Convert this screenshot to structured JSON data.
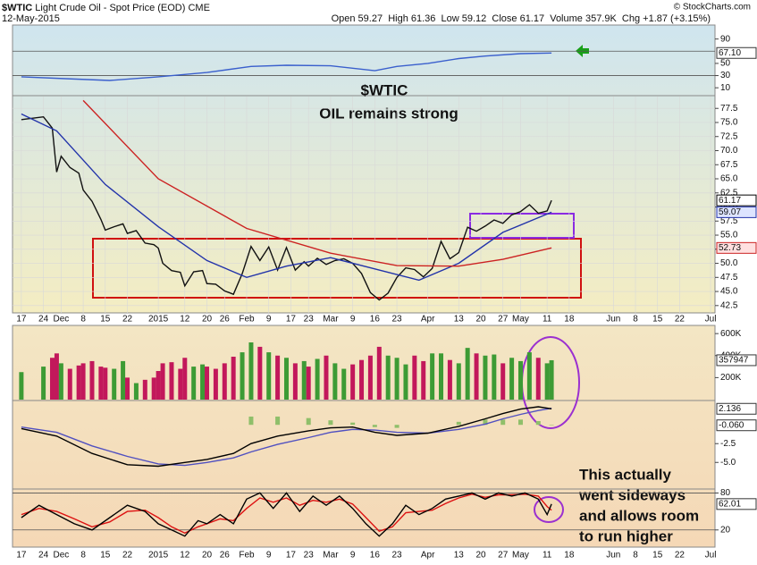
{
  "header": {
    "symbol": "$WTIC",
    "name": "Light Crude Oil - Spot Price (EOD)",
    "exchange": "CME",
    "date": "12-May-2015",
    "stats": "Open 59.27  High 61.36  Low 59.12  Close 61.17  Volume 357.9K  Chg +1.87 (+3.15%)",
    "copyright": "© StockCharts.com"
  },
  "annotations": [
    "$WTIC",
    "OIL remains strong",
    "This actually",
    "went sideways",
    "and allows room",
    "to run higher"
  ],
  "chart_data": [
    {
      "type": "line",
      "ylim": [
        0,
        110
      ],
      "yticks": [
        90,
        50,
        30,
        10
      ],
      "ref_lines": [
        70,
        30
      ],
      "tags": [
        {
          "value": 67.1,
          "label": "67.10"
        }
      ],
      "series": [
        {
          "color": "#3a5fcd",
          "x": [
            0,
            10,
            20,
            31,
            42,
            52,
            60,
            70,
            80,
            85,
            92,
            99,
            105,
            113,
            120
          ],
          "values": [
            28,
            25,
            22,
            28,
            35,
            45,
            47,
            46,
            38,
            45,
            50,
            58,
            62,
            66,
            67.1
          ]
        }
      ]
    },
    {
      "type": "line",
      "xlim": [
        -2,
        157
      ],
      "ylim": [
        41.2,
        79.6
      ],
      "xticks": [
        {
          "value": 0,
          "label": "17"
        },
        {
          "value": 5,
          "label": "24"
        },
        {
          "value": 9,
          "label": "Dec"
        },
        {
          "value": 14,
          "label": "8"
        },
        {
          "value": 19,
          "label": "15"
        },
        {
          "value": 24,
          "label": "22"
        },
        {
          "value": 31,
          "label": "2015"
        },
        {
          "value": 37,
          "label": "12"
        },
        {
          "value": 42,
          "label": "20"
        },
        {
          "value": 46,
          "label": "26"
        },
        {
          "value": 51,
          "label": "Feb"
        },
        {
          "value": 56,
          "label": "9"
        },
        {
          "value": 61,
          "label": "17"
        },
        {
          "value": 65,
          "label": "23"
        },
        {
          "value": 70,
          "label": "Mar"
        },
        {
          "value": 75,
          "label": "9"
        },
        {
          "value": 80,
          "label": "16"
        },
        {
          "value": 85,
          "label": "23"
        },
        {
          "value": 92,
          "label": "Apr"
        },
        {
          "value": 99,
          "label": "13"
        },
        {
          "value": 104,
          "label": "20"
        },
        {
          "value": 109,
          "label": "27"
        },
        {
          "value": 113,
          "label": "May"
        },
        {
          "value": 119,
          "label": "11"
        },
        {
          "value": 124,
          "label": "18"
        },
        {
          "value": 134,
          "label": "Jun"
        },
        {
          "value": 139,
          "label": "8"
        },
        {
          "value": 144,
          "label": "15"
        },
        {
          "value": 149,
          "label": "22"
        },
        {
          "value": 156,
          "label": "Jul"
        }
      ],
      "yticks": [
        77.5,
        {
          "value": 75,
          "label": "75.0"
        },
        72.5,
        {
          "value": 70,
          "label": "70.0"
        },
        67.5,
        {
          "value": 65,
          "label": "65.0"
        },
        62.5,
        {
          "value": 60,
          "label": "60.0"
        },
        57.5,
        {
          "value": 55,
          "label": "55.0"
        },
        52.5,
        {
          "value": 50,
          "label": "50.0"
        },
        47.5,
        {
          "value": 45,
          "label": "45.0"
        },
        42.5
      ],
      "grid": true,
      "tags": [
        61.17,
        59.07,
        52.73
      ],
      "series": [
        {
          "color": "#111111",
          "x": [
            0,
            5,
            7,
            8,
            9,
            11,
            13,
            14,
            16,
            18,
            19,
            21,
            23,
            24,
            26,
            28,
            30,
            31,
            32,
            34,
            36,
            37,
            39,
            41,
            42,
            44,
            46,
            48,
            50,
            52,
            54,
            56,
            58,
            60,
            62,
            64,
            65,
            67,
            69,
            71,
            73,
            75,
            77,
            79,
            81,
            83,
            85,
            87,
            89,
            91,
            93,
            95,
            97,
            99,
            101,
            103,
            105,
            107,
            109,
            111,
            113,
            115,
            117,
            119,
            120
          ],
          "values": [
            75.5,
            76,
            74,
            66.2,
            69,
            67,
            66,
            63,
            61,
            57.8,
            55.9,
            56.5,
            57,
            55.3,
            55.8,
            53.6,
            53.3,
            52.7,
            50,
            48.7,
            48.4,
            46,
            48.5,
            48.7,
            46.4,
            46.3,
            45.1,
            44.5,
            48.2,
            53,
            50.5,
            52.9,
            48.8,
            52.8,
            48.8,
            50.3,
            49.5,
            50.9,
            49.8,
            50.5,
            50.8,
            50,
            48.2,
            44.8,
            43.5,
            44.7,
            47.5,
            49.2,
            48.9,
            47.6,
            49.1,
            53.9,
            50.8,
            51.9,
            56.4,
            55.7,
            56.6,
            57.7,
            57.1,
            58.6,
            59.2,
            60.4,
            58.9,
            59.3,
            61.17
          ]
        },
        {
          "color": "#2233aa",
          "x": [
            0,
            8,
            19,
            31,
            42,
            51,
            60,
            70,
            80,
            90,
            99,
            109,
            120
          ],
          "values": [
            76.5,
            73.5,
            64,
            56.5,
            50.5,
            47.5,
            49.5,
            51,
            49,
            47,
            50,
            55.5,
            59.07
          ]
        },
        {
          "color": "#cc2222",
          "x": [
            14,
            31,
            51,
            70,
            85,
            99,
            109,
            120
          ],
          "values": [
            78.9,
            65,
            56.2,
            51.8,
            49.6,
            49.5,
            50.7,
            52.73
          ]
        }
      ]
    },
    {
      "type": "bar",
      "ylim": [
        0,
        650000
      ],
      "yticks": [
        {
          "value": 600000,
          "label": "600K"
        },
        {
          "value": 400000,
          "label": "400K"
        },
        {
          "value": 200000,
          "label": "200K"
        }
      ],
      "tags": [
        357947
      ],
      "up_color": "#3d9b35",
      "down_color": "#c2185b",
      "series": [
        {
          "x": [
            0,
            5,
            7,
            8,
            9,
            11,
            13,
            14,
            16,
            18,
            19,
            21,
            23,
            24,
            26,
            28,
            30,
            31,
            32,
            34,
            36,
            37,
            39,
            41,
            42,
            44,
            46,
            48,
            50,
            52,
            54,
            56,
            58,
            60,
            62,
            64,
            65,
            67,
            69,
            71,
            73,
            75,
            77,
            79,
            81,
            83,
            85,
            87,
            89,
            91,
            93,
            95,
            97,
            99,
            101,
            103,
            105,
            107,
            109,
            111,
            113,
            115,
            117,
            119,
            120
          ],
          "values": [
            250000,
            300000,
            380000,
            420000,
            330000,
            280000,
            310000,
            330000,
            350000,
            300000,
            290000,
            280000,
            350000,
            200000,
            150000,
            180000,
            200000,
            260000,
            330000,
            340000,
            280000,
            380000,
            300000,
            320000,
            300000,
            280000,
            330000,
            390000,
            430000,
            520000,
            480000,
            430000,
            400000,
            380000,
            330000,
            350000,
            300000,
            370000,
            400000,
            330000,
            280000,
            320000,
            360000,
            400000,
            480000,
            400000,
            380000,
            320000,
            400000,
            350000,
            420000,
            420000,
            360000,
            330000,
            470000,
            420000,
            400000,
            410000,
            330000,
            380000,
            350000,
            430000,
            380000,
            330000,
            357947
          ]
        }
      ]
    },
    {
      "type": "line",
      "ylim": [
        -8.3,
        3
      ],
      "yticks": [
        -2.5,
        {
          "value": -5,
          "label": "-5.0"
        }
      ],
      "tags": [
        2.136,
        {
          "value": -0.06,
          "label": "-0.060"
        }
      ],
      "series": [
        {
          "color": "#8fbf6a",
          "style": "histogram",
          "x": [
            52,
            58,
            65,
            70,
            75,
            80,
            85,
            92,
            99,
            105,
            109,
            113,
            117,
            120
          ],
          "values": [
            1.1,
            1.1,
            0.9,
            0.6,
            0.3,
            -0.3,
            -0.4,
            0,
            0.4,
            0.7,
            0.7,
            0.7,
            0.5,
            -0.06
          ]
        },
        {
          "color": "#5050c0",
          "x": [
            0,
            8,
            16,
            24,
            31,
            37,
            42,
            48,
            52,
            58,
            65,
            70,
            75,
            80,
            85,
            92,
            99,
            105,
            109,
            113,
            117,
            120
          ],
          "values": [
            -0.3,
            -1,
            -2.8,
            -4.2,
            -5.2,
            -5.4,
            -5,
            -4.4,
            -3.6,
            -2.6,
            -1.7,
            -1,
            -0.6,
            -0.7,
            -1,
            -1.1,
            -0.6,
            0.1,
            0.8,
            1.4,
            1.9,
            2.2
          ]
        },
        {
          "color": "#000000",
          "x": [
            0,
            8,
            16,
            24,
            31,
            37,
            42,
            48,
            52,
            58,
            65,
            70,
            75,
            80,
            85,
            92,
            99,
            105,
            109,
            113,
            117,
            120
          ],
          "values": [
            -0.5,
            -1.5,
            -3.8,
            -5.3,
            -5.5,
            -5,
            -4.6,
            -3.8,
            -2.5,
            -1.5,
            -0.8,
            -0.4,
            -0.3,
            -1,
            -1.4,
            -1.1,
            -0.2,
            0.8,
            1.5,
            2.1,
            2.4,
            2.136
          ]
        }
      ]
    },
    {
      "type": "line",
      "ylim": [
        -5,
        85
      ],
      "yticks": [
        80,
        20
      ],
      "ref_lines": [
        80,
        20
      ],
      "tags": [
        62.01
      ],
      "series": [
        {
          "color": "#dd1111",
          "x": [
            0,
            4,
            8,
            12,
            16,
            20,
            24,
            28,
            31,
            34,
            37,
            40,
            42,
            45,
            48,
            51,
            54,
            57,
            60,
            63,
            66,
            69,
            72,
            75,
            78,
            81,
            84,
            87,
            90,
            93,
            96,
            99,
            102,
            105,
            108,
            111,
            114,
            117,
            119,
            120
          ],
          "values": [
            45,
            55,
            50,
            38,
            25,
            33,
            50,
            52,
            40,
            25,
            15,
            25,
            30,
            38,
            35,
            55,
            72,
            65,
            72,
            60,
            68,
            65,
            70,
            62,
            40,
            18,
            25,
            48,
            50,
            52,
            63,
            72,
            78,
            73,
            77,
            77,
            78,
            75,
            58,
            52
          ]
        },
        {
          "color": "#000000",
          "x": [
            0,
            4,
            8,
            12,
            16,
            20,
            24,
            28,
            31,
            34,
            37,
            40,
            42,
            45,
            48,
            51,
            54,
            57,
            60,
            63,
            66,
            69,
            72,
            75,
            78,
            81,
            84,
            87,
            90,
            93,
            96,
            99,
            102,
            105,
            108,
            111,
            114,
            117,
            119,
            120
          ],
          "values": [
            40,
            60,
            45,
            30,
            20,
            40,
            60,
            50,
            30,
            20,
            10,
            35,
            30,
            45,
            30,
            70,
            80,
            55,
            80,
            50,
            75,
            60,
            75,
            55,
            30,
            10,
            30,
            60,
            45,
            55,
            70,
            75,
            80,
            70,
            80,
            75,
            80,
            70,
            45,
            62.01
          ]
        }
      ]
    }
  ]
}
